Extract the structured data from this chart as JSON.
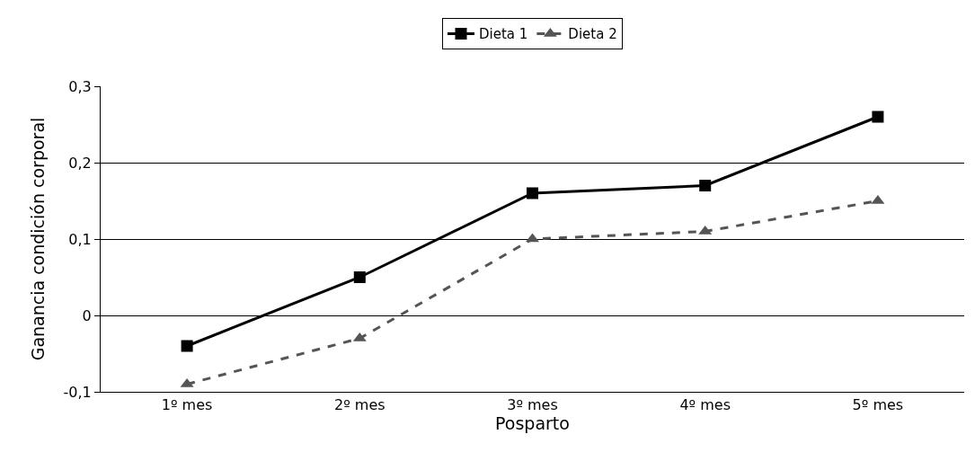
{
  "chart_data": {
    "type": "line",
    "xlabel": "Posparto",
    "ylabel": "Ganancia condición corporal",
    "categories": [
      "1º mes",
      "2º mes",
      "3º mes",
      "4º mes",
      "5º mes"
    ],
    "series": [
      {
        "name": "Dieta 1",
        "color": "#000000",
        "marker": "square",
        "line_style": "solid",
        "values": [
          -0.04,
          0.05,
          0.16,
          0.17,
          0.26
        ]
      },
      {
        "name": "Dieta 2",
        "color": "#555555",
        "marker": "triangle",
        "line_style": "dashed",
        "values": [
          -0.09,
          -0.03,
          0.1,
          0.11,
          0.15
        ]
      }
    ],
    "ylim": [
      -0.1,
      0.3
    ],
    "yticks": [
      {
        "value": -0.1,
        "label": "-0,1"
      },
      0,
      {
        "value": 0.1,
        "label": "0,1"
      },
      {
        "value": 0.2,
        "label": "0,2"
      },
      {
        "value": 0.3,
        "label": "0,3"
      }
    ],
    "grid": "y",
    "legend": "top"
  }
}
